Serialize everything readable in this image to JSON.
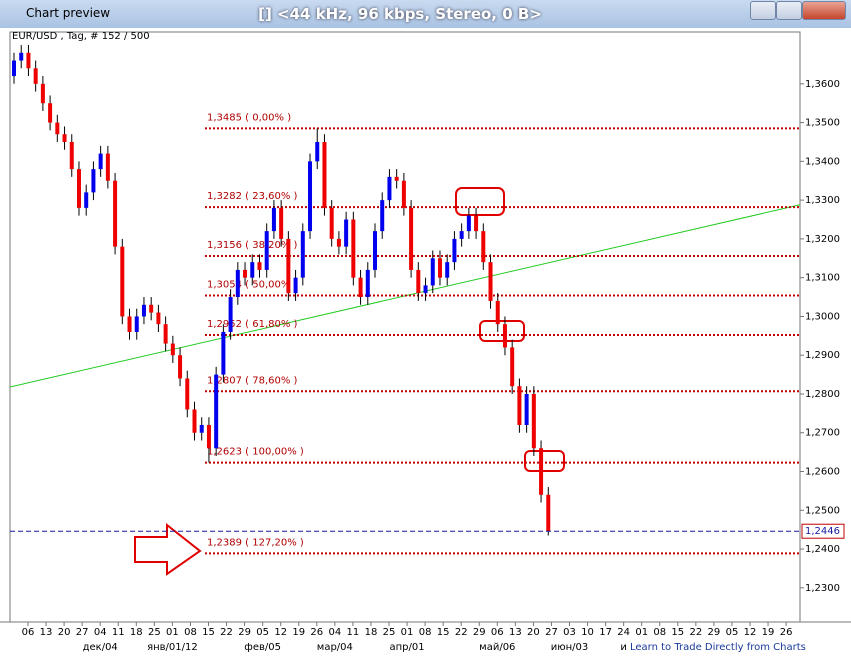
{
  "window": {
    "title": "Chart preview",
    "caption": "[] <44 kHz, 96 kbps, Stereo, 0 B>"
  },
  "chart": {
    "symbol_info": "EUR/USD , Tag, # 152 / 500",
    "ylim": [
      1.2217,
      1.3713
    ],
    "yticks": [
      {
        "value": 1.23,
        "label": "1,2300"
      },
      {
        "value": 1.24,
        "label": "1,2400"
      },
      {
        "value": 1.25,
        "label": "1,2500"
      },
      {
        "value": 1.26,
        "label": "1,2600"
      },
      {
        "value": 1.27,
        "label": "1,2700"
      },
      {
        "value": 1.28,
        "label": "1,2800"
      },
      {
        "value": 1.29,
        "label": "1,2900"
      },
      {
        "value": 1.3,
        "label": "1,3000"
      },
      {
        "value": 1.31,
        "label": "1,3100"
      },
      {
        "value": 1.32,
        "label": "1,3200"
      },
      {
        "value": 1.33,
        "label": "1,3300"
      },
      {
        "value": 1.34,
        "label": "1,3400"
      },
      {
        "value": 1.35,
        "label": "1,3500"
      },
      {
        "value": 1.36,
        "label": "1,3600"
      }
    ],
    "week_labels": [
      "06",
      "13",
      "20",
      "27",
      "04",
      "11",
      "18",
      "25",
      "01",
      "08",
      "15",
      "22",
      "29",
      "05",
      "12",
      "19",
      "26",
      "04",
      "11",
      "18",
      "25",
      "01",
      "08",
      "15",
      "22",
      "29",
      "06",
      "13",
      "20",
      "27",
      "03",
      "10",
      "17",
      "24",
      "01",
      "08",
      "15",
      "22",
      "29",
      "05",
      "12",
      "19",
      "26"
    ],
    "month_labels": [
      null,
      null,
      null,
      null,
      "дек/04",
      null,
      null,
      null,
      "янв/01/12",
      null,
      null,
      null,
      null,
      "фев/05",
      null,
      null,
      null,
      "мар/04",
      null,
      null,
      null,
      "апр/01",
      null,
      null,
      null,
      null,
      "май/06",
      null,
      null,
      null,
      "июн/03",
      null,
      null,
      "и",
      null,
      null,
      null,
      null,
      null,
      null,
      null,
      null,
      null
    ],
    "candles": [
      [
        1.362,
        1.368,
        1.36,
        1.366
      ],
      [
        1.366,
        1.37,
        1.364,
        1.368
      ],
      [
        1.368,
        1.37,
        1.362,
        1.364
      ],
      [
        1.364,
        1.366,
        1.358,
        1.36
      ],
      [
        1.36,
        1.362,
        1.353,
        1.355
      ],
      [
        1.355,
        1.357,
        1.348,
        1.35
      ],
      [
        1.35,
        1.352,
        1.345,
        1.347
      ],
      [
        1.347,
        1.349,
        1.343,
        1.345
      ],
      [
        1.345,
        1.347,
        1.336,
        1.338
      ],
      [
        1.338,
        1.34,
        1.326,
        1.328
      ],
      [
        1.328,
        1.334,
        1.326,
        1.332
      ],
      [
        1.332,
        1.34,
        1.33,
        1.338
      ],
      [
        1.338,
        1.344,
        1.336,
        1.342
      ],
      [
        1.342,
        1.344,
        1.333,
        1.335
      ],
      [
        1.335,
        1.337,
        1.316,
        1.318
      ],
      [
        1.318,
        1.32,
        1.298,
        1.3
      ],
      [
        1.3,
        1.302,
        1.294,
        1.296
      ],
      [
        1.296,
        1.302,
        1.294,
        1.3
      ],
      [
        1.3,
        1.305,
        1.298,
        1.303
      ],
      [
        1.303,
        1.305,
        1.299,
        1.301
      ],
      [
        1.301,
        1.303,
        1.296,
        1.298
      ],
      [
        1.298,
        1.3,
        1.291,
        1.293
      ],
      [
        1.293,
        1.295,
        1.288,
        1.29
      ],
      [
        1.29,
        1.292,
        1.282,
        1.284
      ],
      [
        1.284,
        1.286,
        1.274,
        1.276
      ],
      [
        1.276,
        1.278,
        1.268,
        1.27
      ],
      [
        1.27,
        1.274,
        1.268,
        1.272
      ],
      [
        1.272,
        1.274,
        1.2623,
        1.266
      ],
      [
        1.266,
        1.287,
        1.264,
        1.285
      ],
      [
        1.285,
        1.298,
        1.283,
        1.296
      ],
      [
        1.296,
        1.307,
        1.294,
        1.305
      ],
      [
        1.305,
        1.314,
        1.303,
        1.312
      ],
      [
        1.312,
        1.314,
        1.308,
        1.31
      ],
      [
        1.31,
        1.316,
        1.308,
        1.314
      ],
      [
        1.314,
        1.316,
        1.31,
        1.312
      ],
      [
        1.312,
        1.324,
        1.31,
        1.322
      ],
      [
        1.322,
        1.33,
        1.32,
        1.328
      ],
      [
        1.328,
        1.33,
        1.318,
        1.32
      ],
      [
        1.32,
        1.322,
        1.304,
        1.306
      ],
      [
        1.306,
        1.312,
        1.304,
        1.31
      ],
      [
        1.31,
        1.324,
        1.308,
        1.322
      ],
      [
        1.322,
        1.342,
        1.32,
        1.34
      ],
      [
        1.34,
        1.3485,
        1.338,
        1.345
      ],
      [
        1.345,
        1.347,
        1.326,
        1.328
      ],
      [
        1.328,
        1.33,
        1.318,
        1.32
      ],
      [
        1.32,
        1.322,
        1.316,
        1.318
      ],
      [
        1.318,
        1.327,
        1.316,
        1.325
      ],
      [
        1.325,
        1.327,
        1.308,
        1.31
      ],
      [
        1.31,
        1.312,
        1.303,
        1.305
      ],
      [
        1.305,
        1.314,
        1.303,
        1.312
      ],
      [
        1.312,
        1.324,
        1.31,
        1.322
      ],
      [
        1.322,
        1.332,
        1.32,
        1.33
      ],
      [
        1.33,
        1.338,
        1.328,
        1.336
      ],
      [
        1.336,
        1.338,
        1.333,
        1.335
      ],
      [
        1.335,
        1.337,
        1.326,
        1.328
      ],
      [
        1.328,
        1.33,
        1.31,
        1.312
      ],
      [
        1.312,
        1.314,
        1.304,
        1.306
      ],
      [
        1.306,
        1.31,
        1.304,
        1.308
      ],
      [
        1.308,
        1.317,
        1.306,
        1.315
      ],
      [
        1.315,
        1.317,
        1.308,
        1.31
      ],
      [
        1.31,
        1.316,
        1.308,
        1.314
      ],
      [
        1.314,
        1.322,
        1.312,
        1.32
      ],
      [
        1.32,
        1.324,
        1.318,
        1.322
      ],
      [
        1.322,
        1.328,
        1.32,
        1.326
      ],
      [
        1.326,
        1.328,
        1.32,
        1.322
      ],
      [
        1.322,
        1.324,
        1.312,
        1.314
      ],
      [
        1.314,
        1.316,
        1.302,
        1.304
      ],
      [
        1.304,
        1.306,
        1.296,
        1.298
      ],
      [
        1.298,
        1.3,
        1.29,
        1.292
      ],
      [
        1.292,
        1.294,
        1.28,
        1.282
      ],
      [
        1.282,
        1.284,
        1.27,
        1.272
      ],
      [
        1.272,
        1.282,
        1.27,
        1.28
      ],
      [
        1.28,
        1.282,
        1.264,
        1.266
      ],
      [
        1.266,
        1.268,
        1.252,
        1.254
      ],
      [
        1.254,
        1.256,
        1.2435,
        1.2446
      ]
    ],
    "fib_levels": [
      {
        "price": 1.3485,
        "label": "1,3485 ( 0,00% )"
      },
      {
        "price": 1.3282,
        "label": "1,3282 ( 23,60% )"
      },
      {
        "price": 1.3156,
        "label": "1,3156 ( 38,20% )"
      },
      {
        "price": 1.3054,
        "label": "1,3054 ( 50,00% )"
      },
      {
        "price": 1.2952,
        "label": "1,2952 ( 61,80% )"
      },
      {
        "price": 1.2807,
        "label": "1,2807 ( 78,60% )"
      },
      {
        "price": 1.2623,
        "label": "1,2623 ( 100,00% )"
      },
      {
        "price": 1.2389,
        "label": "1,2389 ( 127,20% )"
      }
    ],
    "trendline": [
      1.2818,
      1.3288
    ],
    "current_price": {
      "value": 1.2446,
      "label": "1,2446"
    },
    "footer_link": "Learn to Trade Directly from Charts"
  }
}
